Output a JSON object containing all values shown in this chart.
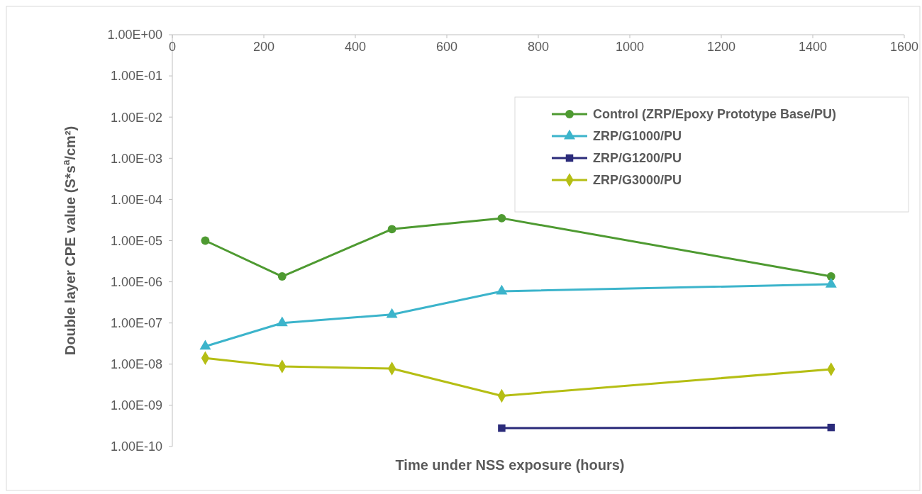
{
  "chart_data": {
    "type": "line",
    "xlabel": "Time under NSS exposure (hours)",
    "ylabel": "Double layer CPE value (S*s$^{a}$/cm²)",
    "log": "y",
    "xlim": [
      0,
      1600
    ],
    "xticks": [
      0,
      200,
      400,
      600,
      800,
      1000,
      1200,
      1400,
      1600
    ],
    "ylim": [
      1e-10,
      1
    ],
    "yticks": [
      {
        "value": 1,
        "label": "1.00E+00"
      },
      {
        "value": 0.1,
        "label": "1.00E-01"
      },
      {
        "value": 0.01,
        "label": "1.00E-02"
      },
      {
        "value": 0.001,
        "label": "1.00E-03"
      },
      {
        "value": 0.0001,
        "label": "1.00E-04"
      },
      {
        "value": 1e-05,
        "label": "1.00E-05"
      },
      {
        "value": 1e-06,
        "label": "1.00E-06"
      },
      {
        "value": 1e-07,
        "label": "1.00E-07"
      },
      {
        "value": 1e-08,
        "label": "1.00E-08"
      },
      {
        "value": 1e-09,
        "label": "1.00E-09"
      },
      {
        "value": 1e-10,
        "label": "1.00E-10"
      }
    ],
    "grid": false,
    "legend": "top right",
    "series": [
      {
        "name": "Control (ZRP/Epoxy Prototype Base/PU)",
        "color": "#4e9a31",
        "marker": "circle",
        "x": [
          72,
          240,
          480,
          720,
          1440
        ],
        "values": [
          1e-05,
          1.35e-06,
          1.9e-05,
          3.5e-05,
          1.35e-06
        ]
      },
      {
        "name": "ZRP/G1000/PU",
        "color": "#3cb4cb",
        "marker": "triangle",
        "x": [
          72,
          240,
          480,
          720,
          1440
        ],
        "values": [
          2.7e-08,
          1e-07,
          1.6e-07,
          5.9e-07,
          8.7e-07
        ]
      },
      {
        "name": "ZRP/G1200/PU",
        "color": "#2b2b7a",
        "marker": "square",
        "x": [
          720,
          1440
        ],
        "values": [
          2.8e-10,
          2.9e-10
        ]
      },
      {
        "name": "ZRP/G3000/PU",
        "color": "#b5be14",
        "marker": "diamond",
        "x": [
          72,
          240,
          480,
          720,
          1440
        ],
        "values": [
          1.4e-08,
          8.8e-09,
          7.8e-09,
          1.7e-09,
          7.5e-09
        ]
      }
    ]
  }
}
